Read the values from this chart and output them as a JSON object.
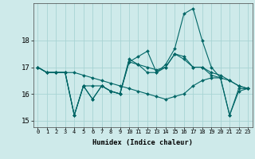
{
  "xlabel": "Humidex (Indice chaleur)",
  "xlim": [
    -0.5,
    23.5
  ],
  "ylim": [
    14.75,
    19.4
  ],
  "yticks": [
    15,
    16,
    17,
    18
  ],
  "xticks": [
    0,
    1,
    2,
    3,
    4,
    5,
    6,
    7,
    8,
    9,
    10,
    11,
    12,
    13,
    14,
    15,
    16,
    17,
    18,
    19,
    20,
    21,
    22,
    23
  ],
  "bg_color": "#ceeaea",
  "line_color": "#006666",
  "grid_color": "#a8d4d4",
  "curves": [
    [
      17.0,
      16.8,
      16.8,
      16.8,
      16.8,
      16.7,
      16.6,
      16.5,
      16.4,
      16.3,
      16.2,
      16.1,
      16.0,
      15.9,
      15.8,
      15.9,
      16.0,
      16.3,
      16.5,
      16.6,
      16.6,
      16.5,
      16.3,
      16.2
    ],
    [
      17.0,
      16.8,
      16.8,
      16.8,
      15.2,
      16.3,
      15.8,
      16.3,
      16.1,
      16.0,
      17.2,
      17.1,
      16.8,
      16.8,
      17.0,
      17.5,
      17.4,
      17.0,
      17.0,
      16.7,
      16.6,
      15.2,
      16.2,
      16.2
    ],
    [
      17.0,
      16.8,
      16.8,
      16.8,
      15.2,
      16.3,
      16.3,
      16.3,
      16.1,
      16.0,
      17.3,
      17.1,
      17.0,
      16.9,
      17.0,
      17.5,
      17.3,
      17.0,
      17.0,
      16.8,
      16.7,
      16.5,
      16.3,
      16.2
    ],
    [
      17.0,
      16.8,
      16.8,
      16.8,
      15.2,
      16.3,
      15.8,
      16.3,
      16.1,
      16.0,
      17.2,
      17.4,
      17.6,
      16.8,
      17.1,
      17.7,
      19.0,
      19.2,
      18.0,
      17.0,
      16.6,
      15.2,
      16.1,
      16.2
    ]
  ]
}
